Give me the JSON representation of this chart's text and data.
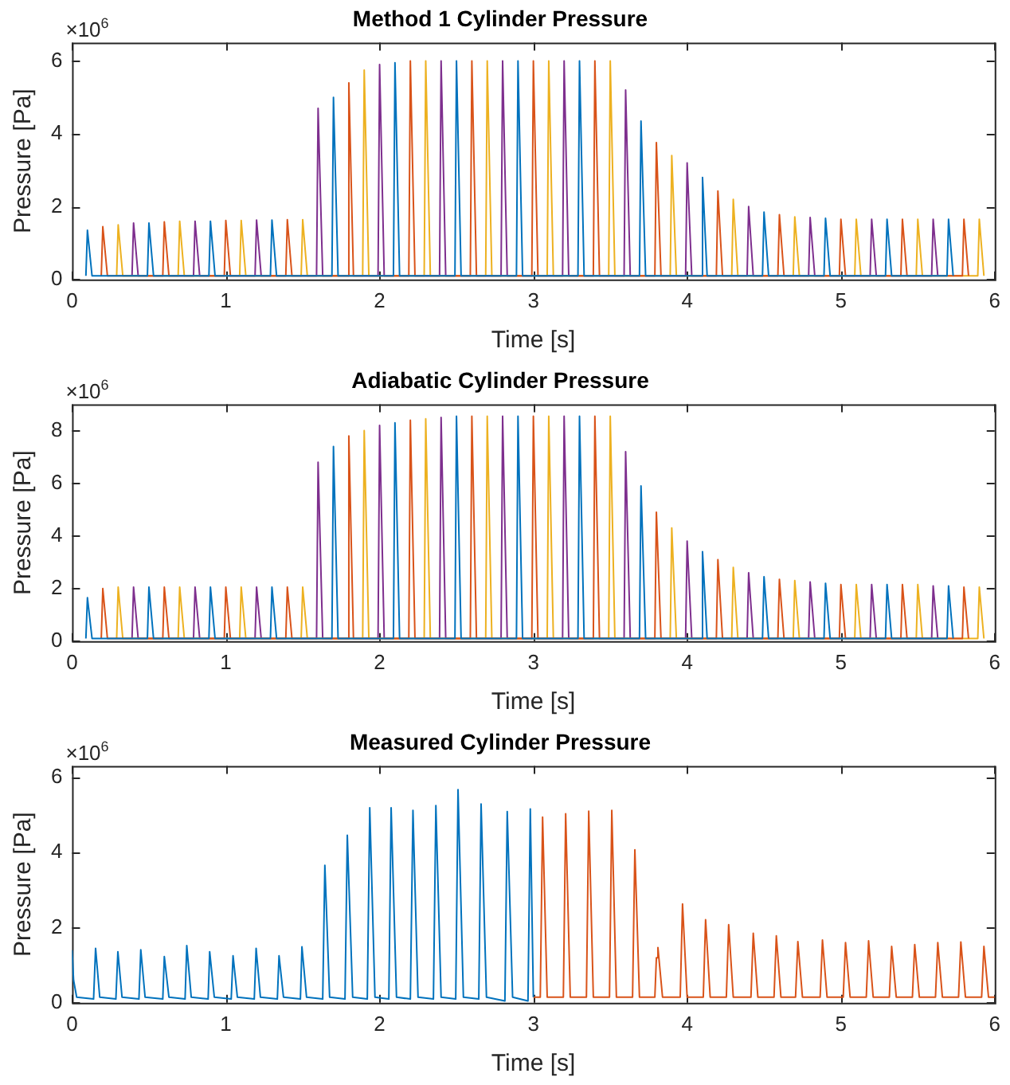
{
  "chart_data": [
    {
      "type": "line",
      "title": "Method 1 Cylinder Pressure",
      "xlabel": "Time [s]",
      "ylabel": "Pressure [Pa]",
      "annotations": [
        "×10$^{6}$"
      ],
      "xlim": [
        0,
        6
      ],
      "xticks": [
        0,
        1,
        2,
        3,
        4,
        5,
        6
      ],
      "ylim": [
        0,
        6.5
      ],
      "yticks": [
        0,
        2,
        4,
        6
      ],
      "series": [
        {
          "color": "#0072bd",
          "x": [
            0.09,
            0.1,
            0.13,
            0.49,
            0.5,
            0.53,
            0.89,
            0.9,
            0.93,
            1.29,
            1.3,
            1.33,
            1.69,
            1.7,
            1.73,
            2.09,
            2.1,
            2.13,
            2.49,
            2.5,
            2.53,
            2.89,
            2.9,
            2.93,
            3.29,
            3.3,
            3.33,
            3.69,
            3.7,
            3.73,
            4.09,
            4.1,
            4.13,
            4.49,
            4.5,
            4.53,
            4.89,
            4.9,
            4.93,
            5.29,
            5.3,
            5.33,
            5.69,
            5.7,
            5.73
          ],
          "values": [
            0.1,
            1.35,
            0.1,
            0.1,
            1.55,
            0.1,
            0.1,
            1.6,
            0.1,
            0.1,
            1.63,
            0.1,
            0.1,
            5.0,
            0.1,
            0.1,
            5.95,
            0.1,
            0.1,
            6.0,
            0.1,
            0.1,
            6.0,
            0.1,
            0.1,
            6.0,
            0.1,
            0.1,
            4.35,
            0.1,
            0.1,
            2.8,
            0.1,
            0.1,
            1.85,
            0.1,
            0.1,
            1.68,
            0.1,
            0.1,
            1.65,
            0.1,
            0.1,
            1.65,
            0.1
          ]
        },
        {
          "color": "#d95319",
          "x": [
            0.19,
            0.2,
            0.23,
            0.59,
            0.6,
            0.63,
            0.99,
            1.0,
            1.03,
            1.39,
            1.4,
            1.43,
            1.79,
            1.8,
            1.83,
            2.19,
            2.2,
            2.23,
            2.59,
            2.6,
            2.63,
            2.99,
            3.0,
            3.03,
            3.39,
            3.4,
            3.43,
            3.79,
            3.8,
            3.83,
            4.19,
            4.2,
            4.23,
            4.59,
            4.6,
            4.63,
            4.99,
            5.0,
            5.03,
            5.39,
            5.4,
            5.43,
            5.79,
            5.8,
            5.83
          ],
          "values": [
            0.1,
            1.45,
            0.1,
            0.1,
            1.58,
            0.1,
            0.1,
            1.62,
            0.1,
            0.1,
            1.64,
            0.1,
            0.1,
            5.4,
            0.1,
            0.1,
            6.0,
            0.1,
            0.1,
            6.0,
            0.1,
            0.1,
            6.0,
            0.1,
            0.1,
            6.0,
            0.1,
            0.1,
            3.76,
            0.1,
            0.1,
            2.43,
            0.1,
            0.1,
            1.78,
            0.1,
            0.1,
            1.65,
            0.1,
            0.1,
            1.65,
            0.1,
            0.1,
            1.65,
            0.1
          ]
        },
        {
          "color": "#edb120",
          "x": [
            0.29,
            0.3,
            0.33,
            0.69,
            0.7,
            0.73,
            1.09,
            1.1,
            1.13,
            1.49,
            1.5,
            1.53,
            1.89,
            1.9,
            1.93,
            2.29,
            2.3,
            2.33,
            2.69,
            2.7,
            2.73,
            3.09,
            3.1,
            3.13,
            3.49,
            3.5,
            3.53,
            3.89,
            3.9,
            3.93,
            4.29,
            4.3,
            4.33,
            4.69,
            4.7,
            4.73,
            5.09,
            5.1,
            5.13,
            5.49,
            5.5,
            5.53,
            5.89,
            5.9,
            5.93
          ],
          "values": [
            0.1,
            1.5,
            0.1,
            0.1,
            1.6,
            0.1,
            0.1,
            1.62,
            0.1,
            0.1,
            1.64,
            0.1,
            0.1,
            5.75,
            0.1,
            0.1,
            6.0,
            0.1,
            0.1,
            6.0,
            0.1,
            0.1,
            6.0,
            0.1,
            0.1,
            6.0,
            0.1,
            0.1,
            3.4,
            0.1,
            0.1,
            2.2,
            0.1,
            0.1,
            1.72,
            0.1,
            0.1,
            1.65,
            0.1,
            0.1,
            1.65,
            0.1,
            0.1,
            1.65,
            0.1
          ]
        },
        {
          "color": "#7e2f8e",
          "x": [
            0.39,
            0.4,
            0.43,
            0.79,
            0.8,
            0.83,
            1.19,
            1.2,
            1.23,
            1.59,
            1.6,
            1.63,
            1.99,
            2.0,
            2.03,
            2.39,
            2.4,
            2.43,
            2.79,
            2.8,
            2.83,
            3.19,
            3.2,
            3.23,
            3.59,
            3.6,
            3.63,
            3.99,
            4.0,
            4.03,
            4.39,
            4.4,
            4.43,
            4.79,
            4.8,
            4.83,
            5.19,
            5.2,
            5.23,
            5.59,
            5.6,
            5.63
          ],
          "values": [
            0.1,
            1.55,
            0.1,
            0.1,
            1.6,
            0.1,
            0.1,
            1.63,
            0.1,
            0.1,
            4.7,
            0.1,
            0.1,
            5.9,
            0.1,
            0.1,
            6.0,
            0.1,
            0.1,
            6.0,
            0.1,
            0.1,
            6.0,
            0.1,
            0.1,
            5.2,
            0.1,
            0.1,
            3.2,
            0.1,
            0.1,
            2.0,
            0.1,
            0.1,
            1.7,
            0.1,
            0.1,
            1.65,
            0.1,
            0.1,
            1.65,
            0.1
          ]
        }
      ]
    },
    {
      "type": "line",
      "title": "Adiabatic Cylinder Pressure",
      "xlabel": "Time [s]",
      "ylabel": "Pressure [Pa]",
      "annotations": [
        "×10$^{6}$"
      ],
      "xlim": [
        0,
        6
      ],
      "xticks": [
        0,
        1,
        2,
        3,
        4,
        5,
        6
      ],
      "ylim": [
        0,
        9
      ],
      "yticks": [
        0,
        2,
        4,
        6,
        8
      ],
      "series": [
        {
          "color": "#0072bd",
          "x": [
            0.09,
            0.1,
            0.13,
            0.49,
            0.5,
            0.53,
            0.89,
            0.9,
            0.93,
            1.29,
            1.3,
            1.33,
            1.69,
            1.7,
            1.73,
            2.09,
            2.1,
            2.13,
            2.49,
            2.5,
            2.53,
            2.89,
            2.9,
            2.93,
            3.29,
            3.3,
            3.33,
            3.69,
            3.7,
            3.73,
            4.09,
            4.1,
            4.13,
            4.49,
            4.5,
            4.53,
            4.89,
            4.9,
            4.93,
            5.29,
            5.3,
            5.33,
            5.69,
            5.7,
            5.73
          ],
          "values": [
            0.1,
            1.65,
            0.1,
            0.1,
            2.05,
            0.1,
            0.1,
            2.05,
            0.1,
            0.1,
            2.05,
            0.1,
            0.1,
            7.4,
            0.1,
            0.1,
            8.3,
            0.1,
            0.1,
            8.55,
            0.1,
            0.1,
            8.55,
            0.1,
            0.1,
            8.55,
            0.1,
            0.1,
            5.9,
            0.1,
            0.1,
            3.4,
            0.1,
            0.1,
            2.45,
            0.1,
            0.1,
            2.2,
            0.1,
            0.1,
            2.15,
            0.1,
            0.1,
            2.1,
            0.1
          ]
        },
        {
          "color": "#d95319",
          "x": [
            0.19,
            0.2,
            0.23,
            0.59,
            0.6,
            0.63,
            0.99,
            1.0,
            1.03,
            1.39,
            1.4,
            1.43,
            1.79,
            1.8,
            1.83,
            2.19,
            2.2,
            2.23,
            2.59,
            2.6,
            2.63,
            2.99,
            3.0,
            3.03,
            3.39,
            3.4,
            3.43,
            3.79,
            3.8,
            3.83,
            4.19,
            4.2,
            4.23,
            4.59,
            4.6,
            4.63,
            4.99,
            5.0,
            5.03,
            5.39,
            5.4,
            5.43,
            5.79,
            5.8,
            5.83
          ],
          "values": [
            0.1,
            2.0,
            0.1,
            0.1,
            2.05,
            0.1,
            0.1,
            2.05,
            0.1,
            0.1,
            2.05,
            0.1,
            0.1,
            7.8,
            0.1,
            0.1,
            8.4,
            0.1,
            0.1,
            8.55,
            0.1,
            0.1,
            8.55,
            0.1,
            0.1,
            8.55,
            0.1,
            0.1,
            4.9,
            0.1,
            0.1,
            3.1,
            0.1,
            0.1,
            2.35,
            0.1,
            0.1,
            2.15,
            0.1,
            0.1,
            2.15,
            0.1,
            0.1,
            2.05,
            0.1
          ]
        },
        {
          "color": "#edb120",
          "x": [
            0.29,
            0.3,
            0.33,
            0.69,
            0.7,
            0.73,
            1.09,
            1.1,
            1.13,
            1.49,
            1.5,
            1.53,
            1.89,
            1.9,
            1.93,
            2.29,
            2.3,
            2.33,
            2.69,
            2.7,
            2.73,
            3.09,
            3.1,
            3.13,
            3.49,
            3.5,
            3.53,
            3.89,
            3.9,
            3.93,
            4.29,
            4.3,
            4.33,
            4.69,
            4.7,
            4.73,
            5.09,
            5.1,
            5.13,
            5.49,
            5.5,
            5.53,
            5.89,
            5.9,
            5.93
          ],
          "values": [
            0.1,
            2.05,
            0.1,
            0.1,
            2.05,
            0.1,
            0.1,
            2.05,
            0.1,
            0.1,
            2.05,
            0.1,
            0.1,
            8.0,
            0.1,
            0.1,
            8.45,
            0.1,
            0.1,
            8.55,
            0.1,
            0.1,
            8.55,
            0.1,
            0.1,
            8.55,
            0.1,
            0.1,
            4.3,
            0.1,
            0.1,
            2.8,
            0.1,
            0.1,
            2.3,
            0.1,
            0.1,
            2.15,
            0.1,
            0.1,
            2.15,
            0.1,
            0.1,
            2.05,
            0.1
          ]
        },
        {
          "color": "#7e2f8e",
          "x": [
            0.39,
            0.4,
            0.43,
            0.79,
            0.8,
            0.83,
            1.19,
            1.2,
            1.23,
            1.59,
            1.6,
            1.63,
            1.99,
            2.0,
            2.03,
            2.39,
            2.4,
            2.43,
            2.79,
            2.8,
            2.83,
            3.19,
            3.2,
            3.23,
            3.59,
            3.6,
            3.63,
            3.99,
            4.0,
            4.03,
            4.39,
            4.4,
            4.43,
            4.79,
            4.8,
            4.83,
            5.19,
            5.2,
            5.23,
            5.59,
            5.6,
            5.63
          ],
          "values": [
            0.1,
            2.05,
            0.1,
            0.1,
            2.05,
            0.1,
            0.1,
            2.05,
            0.1,
            0.1,
            6.8,
            0.1,
            0.1,
            8.2,
            0.1,
            0.1,
            8.5,
            0.1,
            0.1,
            8.55,
            0.1,
            0.1,
            8.55,
            0.1,
            0.1,
            7.2,
            0.1,
            0.1,
            3.8,
            0.1,
            0.1,
            2.6,
            0.1,
            0.1,
            2.25,
            0.1,
            0.1,
            2.15,
            0.1,
            0.1,
            2.1,
            0.1
          ]
        }
      ]
    },
    {
      "type": "line",
      "title": "Measured Cylinder Pressure",
      "xlabel": "Time [s]",
      "ylabel": "Pressure [Pa]",
      "annotations": [
        "×10$^{6}$"
      ],
      "xlim": [
        0,
        6
      ],
      "xticks": [
        0,
        1,
        2,
        3,
        4,
        5,
        6
      ],
      "ylim": [
        0,
        6.3
      ],
      "yticks": [
        0,
        2,
        4,
        6
      ],
      "series": [
        {
          "color": "#0072bd",
          "x": [
            0,
            0.01,
            0.03,
            0.14,
            0.153,
            0.18,
            0.285,
            0.298,
            0.325,
            0.435,
            0.447,
            0.475,
            0.59,
            0.6,
            0.63,
            0.735,
            0.746,
            0.775,
            0.885,
            0.895,
            0.925,
            1.035,
            1.047,
            1.075,
            1.185,
            1.197,
            1.225,
            1.335,
            1.346,
            1.375,
            1.485,
            1.495,
            1.525,
            1.63,
            1.644,
            1.675,
            1.775,
            1.79,
            1.825,
            1.92,
            1.936,
            1.97,
            2.06,
            2.075,
            2.11,
            2.2,
            2.217,
            2.25,
            2.35,
            2.366,
            2.4,
            2.495,
            2.51,
            2.545,
            2.645,
            2.66,
            2.695,
            2.815,
            2.83,
            2.865,
            2.965,
            2.98,
            3.0
          ],
          "values": [
            1.4,
            0.6,
            0.15,
            0.1,
            1.45,
            0.15,
            0.1,
            1.36,
            0.15,
            0.1,
            1.41,
            0.15,
            0.1,
            1.23,
            0.15,
            0.1,
            1.52,
            0.15,
            0.1,
            1.36,
            0.15,
            0.1,
            1.25,
            0.15,
            0.1,
            1.45,
            0.15,
            0.1,
            1.25,
            0.15,
            0.1,
            1.49,
            0.15,
            0.1,
            3.66,
            0.15,
            0.1,
            4.46,
            0.15,
            0.1,
            5.19,
            0.15,
            0.1,
            5.19,
            0.15,
            0.1,
            5.12,
            0.15,
            0.1,
            5.25,
            0.15,
            0.1,
            5.67,
            0.15,
            0.1,
            5.29,
            0.15,
            0.05,
            5.09,
            0.15,
            0.05,
            5.16,
            0.15
          ]
        },
        {
          "color": "#d95319",
          "x": [
            3.0,
            3.045,
            3.06,
            3.09,
            3.195,
            3.21,
            3.24,
            3.345,
            3.36,
            3.39,
            3.495,
            3.51,
            3.54,
            3.645,
            3.66,
            3.69,
            3.79,
            3.8,
            3.81,
            3.84,
            3.955,
            3.97,
            4.0,
            4.105,
            4.12,
            4.15,
            4.255,
            4.27,
            4.3,
            4.415,
            4.43,
            4.46,
            4.565,
            4.58,
            4.61,
            4.705,
            4.72,
            4.75,
            4.865,
            4.88,
            4.91,
            5.015,
            5.03,
            5.06,
            5.165,
            5.18,
            5.21,
            5.315,
            5.33,
            5.36,
            5.465,
            5.48,
            5.51,
            5.615,
            5.63,
            5.66,
            5.765,
            5.78,
            5.81,
            5.915,
            5.93,
            5.96,
            6.0
          ],
          "values": [
            0.15,
            0.15,
            4.94,
            0.15,
            0.15,
            5.03,
            0.15,
            0.15,
            5.1,
            0.15,
            0.15,
            5.12,
            0.15,
            0.15,
            4.07,
            0.15,
            0.15,
            1.2,
            1.47,
            0.15,
            0.15,
            2.63,
            0.15,
            0.15,
            2.21,
            0.15,
            0.15,
            2.08,
            0.15,
            0.15,
            1.85,
            0.15,
            0.15,
            1.78,
            0.15,
            0.15,
            1.63,
            0.15,
            0.15,
            1.67,
            0.15,
            0.15,
            1.6,
            0.15,
            0.15,
            1.65,
            0.15,
            0.15,
            1.5,
            0.15,
            0.15,
            1.55,
            0.15,
            0.15,
            1.6,
            0.15,
            0.15,
            1.62,
            0.15,
            0.15,
            1.5,
            0.15,
            0.15
          ]
        }
      ]
    }
  ]
}
